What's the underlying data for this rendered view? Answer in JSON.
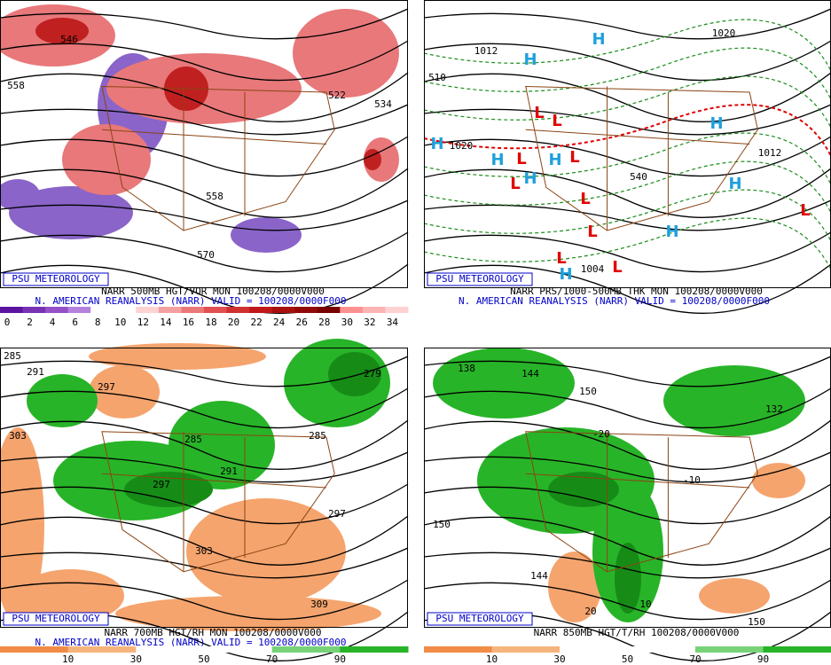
{
  "panels": [
    {
      "badge": "PSU METEOROLOGY",
      "caption": [
        "NARR 500MB HGT/VOR MON 100208/0000V000",
        "N. AMERICAN REANALYSIS (NARR) VALID = 100208/0000F000"
      ],
      "colorbar": [
        0,
        2,
        4,
        6,
        8,
        10,
        12,
        14,
        16,
        18,
        20,
        22,
        24,
        26,
        28,
        30,
        32,
        34
      ],
      "labels": [
        "558",
        "546",
        "522",
        "534",
        "558",
        "570"
      ],
      "markers": []
    },
    {
      "badge": "PSU METEOROLOGY",
      "caption": [
        "NARR PRS/1000-500MB THK MON 100208/0000V000",
        "N. AMERICAN REANALYSIS (NARR) VALID = 100208/0000F000"
      ],
      "colorbar": [],
      "labels": [
        "1012",
        "1020",
        "1012",
        "1004",
        "1020",
        "510",
        "540"
      ],
      "markers": [
        "H",
        "H",
        "H",
        "H",
        "H",
        "H",
        "H",
        "H",
        "H",
        "H",
        "L",
        "L",
        "L",
        "L",
        "L",
        "L",
        "L",
        "L",
        "L",
        "L"
      ]
    },
    {
      "badge": "PSU METEOROLOGY",
      "caption": [
        "NARR 700MB HGT/RH MON 100208/0000V000",
        "N. AMERICAN REANALYSIS (NARR) VALID = 100208/0000F000"
      ],
      "colorbar": [
        10,
        30,
        50,
        70,
        90
      ],
      "labels": [
        "285",
        "291",
        "297",
        "303",
        "285",
        "291",
        "297",
        "279",
        "285",
        "297",
        "303",
        "309"
      ],
      "markers": []
    },
    {
      "badge": "PSU METEOROLOGY",
      "caption": [
        "NARR 850MB HGT/T/RH 100208/0000V000"
      ],
      "colorbar": [
        10,
        30,
        50,
        70,
        90
      ],
      "labels": [
        "138",
        "144",
        "150",
        "150",
        "-20",
        "-10",
        "144",
        "20",
        "10",
        "132",
        "150"
      ],
      "markers": []
    }
  ]
}
